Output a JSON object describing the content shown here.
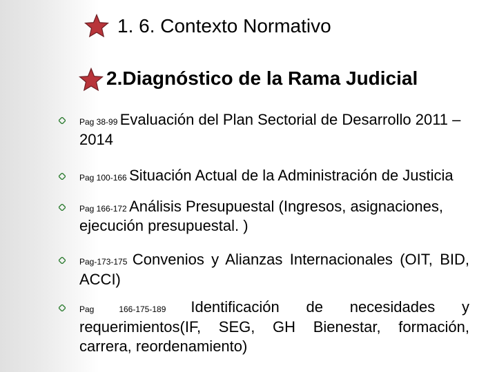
{
  "colors": {
    "star_fill": "#b8343a",
    "star_stroke": "#6b1e23",
    "bullet_color": "#2e7d32",
    "text_color": "#000000",
    "bg_left": "#e0e0e0",
    "bg_right": "#ffffff"
  },
  "heading1": "1. 6. Contexto Normativo",
  "heading2": "2.Diagnóstico de la Rama Judicial",
  "items": [
    {
      "pag": "Pag 38-99 ",
      "text": "Evaluación del Plan Sectorial de Desarrollo 2011 – 2014",
      "gap": "gap1",
      "justify": false
    },
    {
      "pag": "Pag 100-166 ",
      "text": "Situación Actual de la Administración de Justicia",
      "gap": "gap2",
      "justify": false
    },
    {
      "pag": "Pag 166-172 ",
      "text": "Análisis Presupuestal (Ingresos, asignaciones, ejecución  presupuestal. )",
      "gap": "gap3",
      "justify": false
    },
    {
      "pag": "Pag-173-175 ",
      "text": "Convenios y Alianzas Internacionales (OIT, BID, ACCI)",
      "gap": "gap4",
      "justify": true
    },
    {
      "pag": "Pag 166-175-189 ",
      "text": "Identificación de necesidades y requerimientos(IF, SEG, GH Bienestar, formación, carrera, reordenamiento)",
      "gap": "",
      "justify": true
    }
  ]
}
